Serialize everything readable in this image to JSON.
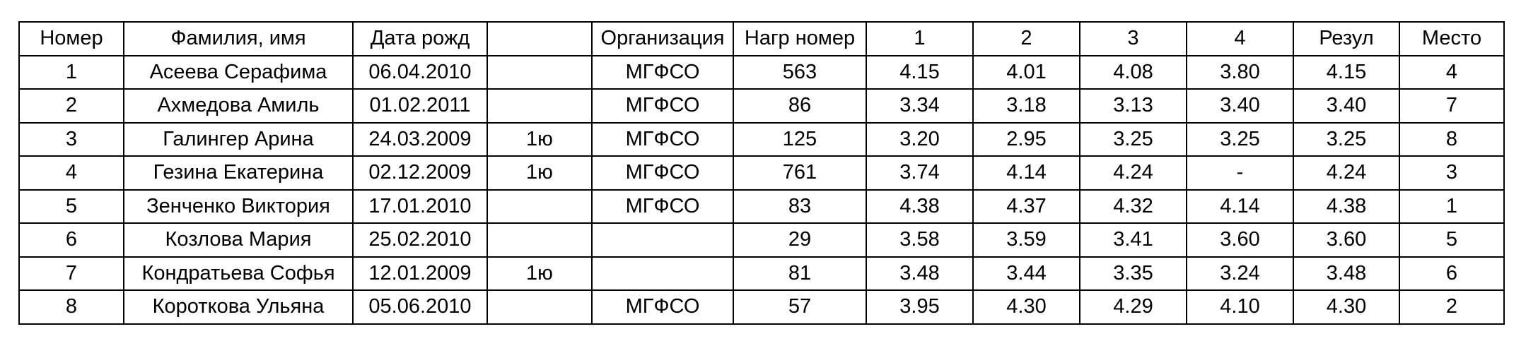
{
  "table": {
    "headers": [
      "Номер",
      "Фамилия, имя",
      "Дата рожд",
      "",
      "Организация",
      "Нагр номер",
      "1",
      "2",
      "3",
      "4",
      "Резул",
      "Место"
    ],
    "rows": [
      [
        "1",
        "Асеева Серафима",
        "06.04.2010",
        "",
        "МГФСО",
        "563",
        "4.15",
        "4.01",
        "4.08",
        "3.80",
        "4.15",
        "4"
      ],
      [
        "2",
        "Ахмедова Амиль",
        "01.02.2011",
        "",
        "МГФСО",
        "86",
        "3.34",
        "3.18",
        "3.13",
        "3.40",
        "3.40",
        "7"
      ],
      [
        "3",
        "Галингер Арина",
        "24.03.2009",
        "1ю",
        "МГФСО",
        "125",
        "3.20",
        "2.95",
        "3.25",
        "3.25",
        "3.25",
        "8"
      ],
      [
        "4",
        "Гезина Екатерина",
        "02.12.2009",
        "1ю",
        "МГФСО",
        "761",
        "3.74",
        "4.14",
        "4.24",
        "-",
        "4.24",
        "3"
      ],
      [
        "5",
        "Зенченко Виктория",
        "17.01.2010",
        "",
        "МГФСО",
        "83",
        "4.38",
        "4.37",
        "4.32",
        "4.14",
        "4.38",
        "1"
      ],
      [
        "6",
        "Козлова Мария",
        "25.02.2010",
        "",
        "",
        "29",
        "3.58",
        "3.59",
        "3.41",
        "3.60",
        "3.60",
        "5"
      ],
      [
        "7",
        "Кондратьева Софья",
        "12.01.2009",
        "1ю",
        "",
        "81",
        "3.48",
        "3.44",
        "3.35",
        "3.24",
        "3.48",
        "6"
      ],
      [
        "8",
        "Короткова Ульяна",
        "05.06.2010",
        "",
        "МГФСО",
        "57",
        "3.95",
        "4.30",
        "4.29",
        "4.10",
        "4.30",
        "2"
      ]
    ]
  }
}
